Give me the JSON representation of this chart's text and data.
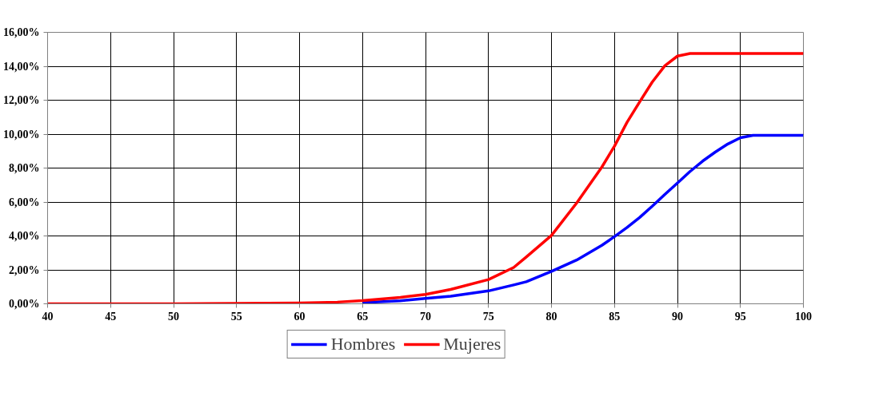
{
  "chart_data": {
    "type": "line",
    "x": [
      40,
      45,
      50,
      55,
      60,
      63,
      65,
      68,
      70,
      72,
      75,
      77,
      78,
      80,
      82,
      84,
      85,
      86,
      87,
      88,
      89,
      90,
      91,
      92,
      93,
      94,
      95,
      96,
      100
    ],
    "series": [
      {
        "name": "Hombres",
        "color": "#0000ff",
        "x": [
          65,
          68,
          70,
          72,
          75,
          77,
          78,
          80,
          82,
          84,
          85,
          86,
          87,
          88,
          89,
          90,
          91,
          92,
          93,
          94,
          95,
          96,
          100
        ],
        "values": [
          0.07,
          0.18,
          0.32,
          0.45,
          0.76,
          1.11,
          1.3,
          1.91,
          2.58,
          3.45,
          3.96,
          4.5,
          5.09,
          5.75,
          6.45,
          7.12,
          7.8,
          8.41,
          8.94,
          9.42,
          9.79,
          9.93,
          9.93
        ]
      },
      {
        "name": "Mujeres",
        "color": "#ff0000",
        "values": [
          0,
          0,
          0,
          0.02,
          0.05,
          0.1,
          0.19,
          0.38,
          0.55,
          0.85,
          1.43,
          2.14,
          2.76,
          4.03,
          5.94,
          8.06,
          9.29,
          10.7,
          11.9,
          13.07,
          14.03,
          14.6,
          14.75,
          14.75,
          14.75,
          14.75,
          14.75,
          14.75,
          14.75
        ]
      }
    ],
    "xlim": [
      40,
      100
    ],
    "xticks": [
      40,
      45,
      50,
      55,
      60,
      65,
      70,
      75,
      80,
      85,
      90,
      95,
      100
    ],
    "ylim": [
      0,
      16
    ],
    "yticks": [
      {
        "value": 0,
        "label": "0,00%"
      },
      {
        "value": 2,
        "label": "2,00%"
      },
      {
        "value": 4,
        "label": "4,00%"
      },
      {
        "value": 6,
        "label": "6,00%"
      },
      {
        "value": 8,
        "label": "8,00%"
      },
      {
        "value": 10,
        "label": "10,00%"
      },
      {
        "value": 12,
        "label": "12,00%"
      },
      {
        "value": 14,
        "label": "14,00%"
      },
      {
        "value": 16,
        "label": "16,00%"
      }
    ],
    "grid": true,
    "legend": "bottom",
    "marker": "none",
    "line_style": "solid"
  }
}
